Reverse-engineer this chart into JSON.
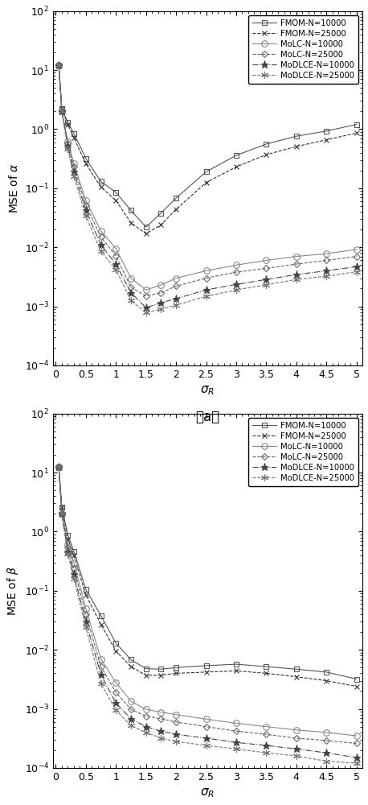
{
  "sigma_R": [
    0.05,
    0.1,
    0.2,
    0.3,
    0.5,
    0.75,
    1.0,
    1.25,
    1.5,
    1.75,
    2.0,
    2.5,
    3.0,
    3.5,
    4.0,
    4.5,
    5.0
  ],
  "alpha_FMOM_10000": [
    12.0,
    2.2,
    1.3,
    0.85,
    0.32,
    0.13,
    0.085,
    0.042,
    0.022,
    0.038,
    0.068,
    0.19,
    0.36,
    0.56,
    0.76,
    0.93,
    1.2
  ],
  "alpha_FMOM_25000": [
    12.0,
    2.2,
    1.2,
    0.72,
    0.26,
    0.105,
    0.062,
    0.026,
    0.017,
    0.024,
    0.044,
    0.125,
    0.23,
    0.37,
    0.51,
    0.66,
    0.86
  ],
  "alpha_MoLC_10000": [
    12.0,
    2.0,
    0.62,
    0.26,
    0.062,
    0.019,
    0.0095,
    0.003,
    0.0019,
    0.0023,
    0.003,
    0.004,
    0.005,
    0.006,
    0.007,
    0.0078,
    0.0092
  ],
  "alpha_MoLC_25000": [
    12.0,
    2.0,
    0.57,
    0.23,
    0.052,
    0.015,
    0.0072,
    0.0021,
    0.0015,
    0.0017,
    0.0022,
    0.003,
    0.0038,
    0.0044,
    0.0052,
    0.006,
    0.007
  ],
  "alpha_MoDLCE_10000": [
    12.0,
    2.0,
    0.52,
    0.19,
    0.042,
    0.011,
    0.0052,
    0.0017,
    0.00095,
    0.00115,
    0.00135,
    0.0019,
    0.00235,
    0.00285,
    0.00345,
    0.004,
    0.0047
  ],
  "alpha_MoDLCE_25000": [
    12.0,
    2.0,
    0.47,
    0.16,
    0.034,
    0.0085,
    0.0042,
    0.00125,
    0.00078,
    0.0009,
    0.00105,
    0.00148,
    0.0019,
    0.00232,
    0.00285,
    0.00325,
    0.00385
  ],
  "beta_FMOM_10000": [
    12.5,
    2.6,
    0.88,
    0.47,
    0.105,
    0.038,
    0.013,
    0.0068,
    0.0048,
    0.0047,
    0.005,
    0.0054,
    0.0057,
    0.0052,
    0.0047,
    0.0042,
    0.0032
  ],
  "beta_FMOM_25000": [
    12.5,
    2.6,
    0.75,
    0.4,
    0.085,
    0.027,
    0.0095,
    0.0052,
    0.0037,
    0.0037,
    0.004,
    0.0042,
    0.0044,
    0.004,
    0.0035,
    0.003,
    0.0024
  ],
  "beta_MoLC_10000": [
    12.5,
    2.0,
    0.62,
    0.3,
    0.05,
    0.007,
    0.0028,
    0.00135,
    0.00098,
    0.00088,
    0.0008,
    0.00067,
    0.00057,
    0.0005,
    0.00044,
    0.0004,
    0.00035
  ],
  "beta_MoLC_25000": [
    12.5,
    2.0,
    0.54,
    0.24,
    0.04,
    0.0052,
    0.0019,
    0.00098,
    0.00075,
    0.00068,
    0.0006,
    0.0005,
    0.00042,
    0.00037,
    0.00032,
    0.00029,
    0.00026
  ],
  "beta_MoDLCE_10000": [
    12.5,
    2.0,
    0.47,
    0.19,
    0.03,
    0.0038,
    0.00125,
    0.00068,
    0.0005,
    0.00042,
    0.00037,
    0.00032,
    0.00027,
    0.00024,
    0.00021,
    0.00018,
    0.00015
  ],
  "beta_MoDLCE_25000": [
    12.5,
    2.0,
    0.42,
    0.16,
    0.024,
    0.0027,
    0.00095,
    0.00052,
    0.0004,
    0.00032,
    0.00028,
    0.00024,
    0.00021,
    0.00018,
    0.00016,
    0.00013,
    0.00012
  ],
  "legend_labels": [
    "FMOM-N=10000",
    "FMOM-N=25000",
    "MoLC-N=10000",
    "MoLC-N=25000",
    "MoDLCE-N=10000",
    "MoDLCE-N=25000"
  ],
  "xticks": [
    0,
    0.5,
    1.0,
    1.5,
    2.0,
    2.5,
    3.0,
    3.5,
    4.0,
    4.5,
    5.0
  ],
  "xticklabels": [
    "0",
    "0.5",
    "1",
    "1.5",
    "2",
    "2.5",
    "3",
    "3.5",
    "4",
    "4.5",
    "5"
  ],
  "xlim": [
    -0.05,
    5.1
  ],
  "ylim_a": [
    0.0001,
    100.0
  ],
  "ylim_b": [
    0.0001,
    100.0
  ],
  "colors": [
    "#696969",
    "#404040",
    "#808080",
    "#606060",
    "#505050",
    "#707070"
  ],
  "linestyles": [
    "-",
    "--",
    "-",
    "--",
    "-.",
    "--"
  ],
  "markers": [
    "s",
    "x",
    "o",
    "D",
    "*",
    "star6"
  ],
  "markersizes": [
    5,
    5,
    6,
    5,
    7,
    7
  ],
  "linewidths": [
    0.9,
    0.9,
    0.9,
    0.9,
    0.9,
    0.9
  ]
}
